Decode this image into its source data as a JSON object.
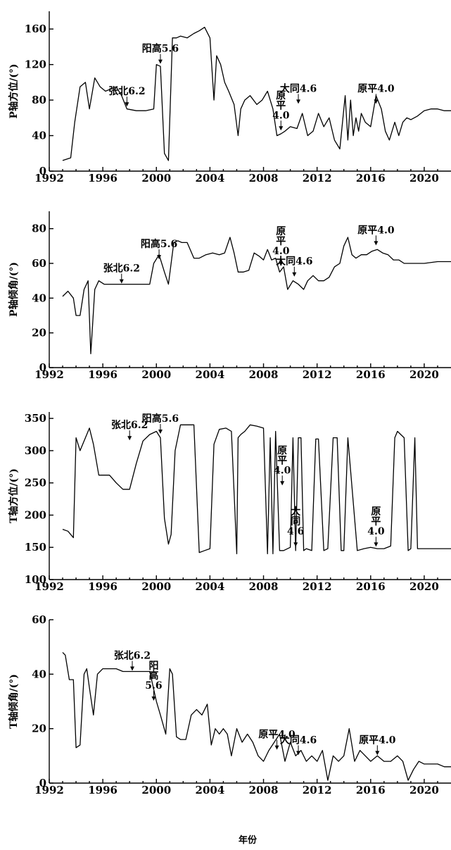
{
  "figure": {
    "xlabel": "年份"
  },
  "chart_data": [
    {
      "type": "line",
      "ylabel": "P轴方位/(°)",
      "xlim": [
        1992,
        2022
      ],
      "ylim": [
        0,
        180
      ],
      "yticks": [
        0,
        40,
        80,
        120,
        160
      ],
      "xticks": [
        1992,
        1996,
        2000,
        2004,
        2008,
        2012,
        2016,
        2020
      ],
      "annotations": [
        {
          "label": [
            "张北6.2"
          ],
          "x": 1997.8,
          "y": 72
        },
        {
          "label": [
            "阳高5.6"
          ],
          "x": 2000.3,
          "y": 120
        },
        {
          "label": [
            "原",
            "平",
            "4.0"
          ],
          "x": 2009.3,
          "y": 45
        },
        {
          "label": [
            "大同4.6"
          ],
          "x": 2010.6,
          "y": 75
        },
        {
          "label": [
            "原平4.0"
          ],
          "x": 2016.4,
          "y": 75
        }
      ],
      "series": [
        {
          "x": [
            1993,
            1993.6,
            1993.9,
            1994.3,
            1994.7,
            1995.0,
            1995.4,
            1995.8,
            1996.2,
            1997.0,
            1997.4,
            1997.8,
            1998.5,
            1999.2,
            1999.8,
            2000.0,
            2000.3,
            2000.6,
            2000.9,
            2001.2,
            2001.5,
            2001.8,
            2002.3,
            2002.8,
            2003.2,
            2003.6,
            2004.0,
            2004.3,
            2004.5,
            2004.8,
            2005.1,
            2005.4,
            2005.8,
            2006.1,
            2006.3,
            2006.6,
            2007.0,
            2007.5,
            2007.9,
            2008.3,
            2008.7,
            2009.0,
            2009.3,
            2009.6,
            2010.0,
            2010.5,
            2010.9,
            2011.3,
            2011.7,
            2012.1,
            2012.5,
            2012.9,
            2013.3,
            2013.7,
            2014.1,
            2014.3,
            2014.5,
            2014.7,
            2014.9,
            2015.1,
            2015.3,
            2015.6,
            2016.0,
            2016.4,
            2016.8,
            2017.1,
            2017.4,
            2017.8,
            2018.1,
            2018.4,
            2018.7,
            2019.0,
            2019.5,
            2020.0,
            2020.5,
            2021.0,
            2021.5,
            2022
          ],
          "values": [
            12,
            15,
            55,
            95,
            100,
            70,
            105,
            95,
            90,
            95,
            85,
            70,
            68,
            68,
            70,
            120,
            118,
            20,
            12,
            150,
            150,
            152,
            150,
            155,
            158,
            162,
            150,
            80,
            130,
            120,
            100,
            90,
            75,
            40,
            70,
            80,
            85,
            75,
            80,
            90,
            70,
            40,
            42,
            45,
            50,
            48,
            65,
            40,
            45,
            65,
            50,
            60,
            35,
            25,
            85,
            35,
            80,
            40,
            60,
            45,
            65,
            55,
            50,
            85,
            70,
            45,
            35,
            55,
            40,
            55,
            60,
            58,
            62,
            68,
            70,
            70,
            68,
            68
          ]
        }
      ]
    },
    {
      "type": "line",
      "ylabel": "P轴倾角/(°)",
      "xlim": [
        1992,
        2022
      ],
      "ylim": [
        0,
        90
      ],
      "yticks": [
        0,
        20,
        40,
        60,
        80
      ],
      "xticks": [
        1992,
        1996,
        2000,
        2004,
        2008,
        2012,
        2016,
        2020
      ],
      "annotations": [
        {
          "label": [
            "张北6.2"
          ],
          "x": 1997.4,
          "y": 48
        },
        {
          "label": [
            "阳高5.6"
          ],
          "x": 2000.2,
          "y": 62
        },
        {
          "label": [
            "原",
            "平",
            "4.0"
          ],
          "x": 2009.3,
          "y": 58
        },
        {
          "label": [
            "大同4.6"
          ],
          "x": 2010.3,
          "y": 52
        },
        {
          "label": [
            "原平4.0"
          ],
          "x": 2016.4,
          "y": 70
        }
      ],
      "series": [
        {
          "x": [
            1993,
            1993.4,
            1993.8,
            1994.0,
            1994.3,
            1994.6,
            1994.9,
            1995.1,
            1995.2,
            1995.4,
            1995.7,
            1996.1,
            1996.5,
            1997.0,
            1997.5,
            1998.5,
            1999.5,
            1999.8,
            2000.2,
            2000.6,
            2000.9,
            2001.3,
            2001.6,
            2001.9,
            2002.3,
            2002.8,
            2003.2,
            2003.7,
            2004.2,
            2004.7,
            2005.1,
            2005.5,
            2005.8,
            2006.1,
            2006.5,
            2006.9,
            2007.3,
            2007.7,
            2008.0,
            2008.3,
            2008.6,
            2008.9,
            2009.2,
            2009.5,
            2009.8,
            2010.2,
            2010.6,
            2011.0,
            2011.3,
            2011.7,
            2012.1,
            2012.5,
            2012.9,
            2013.3,
            2013.7,
            2014.0,
            2014.3,
            2014.6,
            2014.9,
            2015.3,
            2015.7,
            2016.1,
            2016.5,
            2016.9,
            2017.3,
            2017.7,
            2018.1,
            2018.5,
            2019.0,
            2019.5,
            2020.0,
            2021.0,
            2022
          ],
          "values": [
            41,
            44,
            40,
            30,
            30,
            45,
            50,
            8,
            20,
            45,
            50,
            48,
            48,
            48,
            48,
            48,
            48,
            60,
            65,
            55,
            48,
            72,
            73,
            72,
            72,
            63,
            63,
            65,
            66,
            65,
            66,
            75,
            66,
            55,
            55,
            56,
            66,
            64,
            62,
            68,
            62,
            63,
            55,
            58,
            45,
            50,
            48,
            45,
            50,
            53,
            50,
            50,
            52,
            58,
            60,
            70,
            75,
            65,
            63,
            65,
            65,
            67,
            68,
            66,
            65,
            62,
            62,
            60,
            60,
            60,
            60,
            61,
            61
          ]
        }
      ]
    },
    {
      "type": "line",
      "ylabel": "T轴方位/(°)",
      "xlim": [
        1992,
        2022
      ],
      "ylim": [
        100,
        360
      ],
      "yticks": [
        100,
        150,
        200,
        250,
        300,
        350
      ],
      "xticks": [
        1992,
        1996,
        2000,
        2004,
        2008,
        2012,
        2016,
        2020
      ],
      "annotations": [
        {
          "label": [
            "张北6.2"
          ],
          "x": 1998.0,
          "y": 315
        },
        {
          "label": [
            "阳高5.6"
          ],
          "x": 2000.3,
          "y": 325
        },
        {
          "label": [
            "原",
            "平",
            "4.0"
          ],
          "x": 2009.4,
          "y": 245
        },
        {
          "label": [
            "大",
            "同",
            "4.6"
          ],
          "x": 2010.4,
          "y": 150
        },
        {
          "label": [
            "原",
            "平",
            "4.0"
          ],
          "x": 2016.4,
          "y": 150
        }
      ],
      "series": [
        {
          "x": [
            1993,
            1993.4,
            1993.8,
            1994.0,
            1994.3,
            1994.7,
            1995.0,
            1995.3,
            1995.7,
            1996.0,
            1996.5,
            1997.0,
            1997.5,
            1998.0,
            1998.5,
            1999.0,
            1999.5,
            2000.0,
            2000.3,
            2000.6,
            2000.9,
            2001.1,
            2001.4,
            2001.8,
            2002.3,
            2002.8,
            2003.2,
            2003.6,
            2004.0,
            2004.3,
            2004.7,
            2005.2,
            2005.6,
            2006.0,
            2006.1,
            2006.3,
            2006.6,
            2007.0,
            2007.5,
            2008.0,
            2008.3,
            2008.5,
            2008.7,
            2008.9,
            2009.2,
            2009.5,
            2010.0,
            2010.2,
            2010.4,
            2010.6,
            2010.8,
            2011.0,
            2011.2,
            2011.6,
            2011.9,
            2012.1,
            2012.5,
            2012.8,
            2013.2,
            2013.5,
            2013.8,
            2014.0,
            2014.3,
            2015.0,
            2015.5,
            2016.0,
            2016.5,
            2017.0,
            2017.5,
            2017.8,
            2018.0,
            2018.5,
            2018.8,
            2019.0,
            2019.3,
            2019.5,
            2019.7,
            2020.0,
            2021.0,
            2022
          ],
          "values": [
            178,
            175,
            165,
            320,
            300,
            320,
            335,
            310,
            262,
            262,
            262,
            250,
            240,
            240,
            280,
            315,
            325,
            330,
            320,
            195,
            155,
            170,
            300,
            340,
            340,
            340,
            142,
            145,
            148,
            310,
            333,
            335,
            330,
            140,
            320,
            325,
            330,
            340,
            338,
            335,
            140,
            320,
            140,
            330,
            145,
            145,
            150,
            320,
            145,
            320,
            320,
            145,
            148,
            145,
            318,
            318,
            145,
            148,
            320,
            320,
            145,
            145,
            320,
            145,
            148,
            150,
            148,
            148,
            152,
            320,
            330,
            320,
            145,
            148,
            320,
            148,
            148,
            148,
            148,
            148
          ]
        }
      ]
    },
    {
      "type": "line",
      "ylabel": "T轴倾角/(°)",
      "xlim": [
        1992,
        2022
      ],
      "ylim": [
        0,
        60
      ],
      "yticks": [
        0,
        20,
        40,
        60
      ],
      "xticks": [
        1992,
        1996,
        2000,
        2004,
        2008,
        2012,
        2016,
        2020
      ],
      "annotations": [
        {
          "label": [
            "张北6.2"
          ],
          "x": 1998.2,
          "y": 41
        },
        {
          "label": [
            "阳",
            "高",
            "5.6"
          ],
          "x": 1999.8,
          "y": 30
        },
        {
          "label": [
            "原平4.0"
          ],
          "x": 2009.0,
          "y": 12
        },
        {
          "label": [
            "大同4.6"
          ],
          "x": 2010.6,
          "y": 10
        },
        {
          "label": [
            "原平4.0"
          ],
          "x": 2016.5,
          "y": 10
        }
      ],
      "series": [
        {
          "x": [
            1993,
            1993.2,
            1993.5,
            1993.8,
            1994.0,
            1994.3,
            1994.6,
            1994.8,
            1995.0,
            1995.3,
            1995.6,
            1996.0,
            1996.5,
            1997.0,
            1997.5,
            1998.0,
            1998.5,
            1999.0,
            1999.5,
            2000.0,
            2000.3,
            2000.7,
            2001.0,
            2001.2,
            2001.5,
            2001.8,
            2002.2,
            2002.6,
            2003.0,
            2003.4,
            2003.8,
            2004.1,
            2004.4,
            2004.7,
            2005.0,
            2005.3,
            2005.6,
            2006.0,
            2006.4,
            2006.8,
            2007.2,
            2007.6,
            2008.0,
            2008.4,
            2008.8,
            2009.2,
            2009.6,
            2010.0,
            2010.4,
            2010.8,
            2011.2,
            2011.6,
            2012.0,
            2012.4,
            2012.8,
            2013.2,
            2013.6,
            2014.0,
            2014.4,
            2014.8,
            2015.2,
            2015.6,
            2016.0,
            2016.5,
            2017.0,
            2017.5,
            2018.0,
            2018.4,
            2018.8,
            2019.2,
            2019.6,
            2020.0,
            2020.5,
            2021.0,
            2021.5,
            2022
          ],
          "values": [
            48,
            47,
            38,
            38,
            13,
            14,
            40,
            42,
            35,
            25,
            40,
            42,
            42,
            42,
            41,
            41,
            41,
            41,
            41,
            30,
            25,
            18,
            42,
            40,
            17,
            16,
            16,
            25,
            27,
            25,
            29,
            14,
            20,
            18,
            20,
            18,
            10,
            20,
            15,
            18,
            15,
            10,
            8,
            12,
            15,
            18,
            8,
            15,
            10,
            12,
            8,
            10,
            8,
            12,
            1,
            10,
            8,
            10,
            20,
            8,
            12,
            10,
            8,
            10,
            8,
            8,
            10,
            8,
            1,
            5,
            8,
            7,
            7,
            7,
            6,
            6
          ]
        }
      ]
    }
  ]
}
